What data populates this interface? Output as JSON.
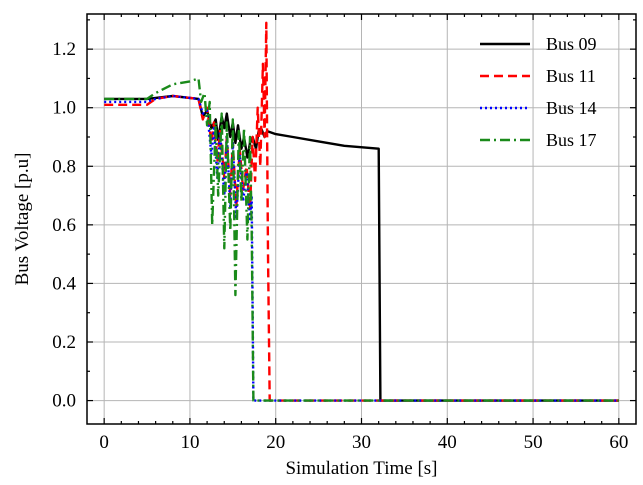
{
  "chart_data": {
    "type": "line",
    "title": "",
    "xlabel": "Simulation Time [s]",
    "ylabel": "Bus Voltage [p.u]",
    "xlim": [
      -2,
      62
    ],
    "ylim": [
      -0.08,
      1.32
    ],
    "xticks": [
      0,
      10,
      20,
      30,
      40,
      50,
      60
    ],
    "yticks": [
      0.0,
      0.2,
      0.4,
      0.6,
      0.8,
      1.0,
      1.2
    ],
    "xtick_labels": [
      "0",
      "10",
      "20",
      "30",
      "40",
      "50",
      "60"
    ],
    "ytick_labels": [
      "0.0",
      "0.2",
      "0.4",
      "0.6",
      "0.8",
      "1.0",
      "1.2"
    ],
    "grid": true,
    "legend_position": "top-right",
    "series": [
      {
        "name": "Bus 09",
        "color": "#000000",
        "style": "solid",
        "x": [
          0,
          5,
          8,
          11,
          11.5,
          12,
          12.5,
          13,
          13.3,
          13.7,
          14,
          14.3,
          14.7,
          15,
          15.3,
          15.6,
          16,
          16.3,
          16.7,
          17,
          17.3,
          17.7,
          18,
          18.3,
          18.7,
          19,
          20,
          22,
          25,
          28,
          32,
          32.2,
          40,
          50,
          60
        ],
        "y": [
          1.03,
          1.03,
          1.04,
          1.03,
          0.97,
          0.99,
          0.93,
          0.96,
          0.89,
          0.97,
          0.93,
          0.98,
          0.9,
          0.95,
          0.88,
          0.94,
          0.86,
          0.9,
          0.83,
          0.88,
          0.9,
          0.86,
          0.92,
          0.93,
          0.9,
          0.92,
          0.91,
          0.9,
          0.885,
          0.87,
          0.86,
          0.0,
          0.0,
          0.0,
          0.0
        ]
      },
      {
        "name": "Bus 11",
        "color": "#ff0000",
        "style": "dashed",
        "x": [
          0,
          5,
          6,
          8,
          11,
          11.5,
          12,
          12.5,
          12.8,
          13.2,
          13.5,
          14,
          14.3,
          14.7,
          15,
          15.4,
          15.8,
          16.2,
          16.6,
          17,
          17.3,
          17.6,
          17.9,
          18.2,
          18.5,
          18.7,
          18.9,
          19.1,
          19.3,
          25,
          40,
          60
        ],
        "y": [
          1.01,
          1.01,
          1.03,
          1.04,
          1.03,
          0.96,
          1.0,
          0.88,
          0.95,
          0.82,
          0.92,
          0.76,
          0.9,
          0.7,
          0.88,
          0.66,
          0.86,
          0.72,
          0.8,
          0.65,
          0.9,
          0.75,
          1.0,
          0.8,
          1.15,
          0.9,
          1.29,
          0.5,
          0.0,
          0.0,
          0.0,
          0.0
        ]
      },
      {
        "name": "Bus 14",
        "color": "#0000ff",
        "style": "dotted",
        "x": [
          0,
          5,
          6,
          8,
          11,
          11.5,
          12,
          12.5,
          12.8,
          13.2,
          13.5,
          14,
          14.3,
          14.7,
          15,
          15.4,
          15.8,
          16.2,
          16.6,
          17,
          17.2,
          17.4,
          20,
          40,
          60
        ],
        "y": [
          1.02,
          1.02,
          1.03,
          1.04,
          1.03,
          0.98,
          0.99,
          0.84,
          0.93,
          0.76,
          0.92,
          0.7,
          0.9,
          0.66,
          0.88,
          0.62,
          0.84,
          0.68,
          0.78,
          0.62,
          0.7,
          0.0,
          0.0,
          0.0,
          0.0
        ]
      },
      {
        "name": "Bus 17",
        "color": "#1a8a1a",
        "style": "dashdot",
        "x": [
          0,
          5,
          6,
          8,
          10,
          11,
          11.3,
          11.7,
          12,
          12.3,
          12.6,
          13,
          13.3,
          13.7,
          14,
          14.3,
          14.7,
          15,
          15.3,
          15.7,
          16,
          16.3,
          16.7,
          17,
          17.2,
          17.4,
          20,
          40,
          60
        ],
        "y": [
          1.03,
          1.03,
          1.05,
          1.08,
          1.09,
          1.1,
          1.02,
          1.05,
          0.94,
          1.02,
          0.6,
          0.95,
          0.7,
          0.98,
          0.52,
          0.95,
          0.58,
          0.96,
          0.36,
          0.92,
          0.68,
          0.93,
          0.55,
          0.9,
          0.58,
          0.0,
          0.0,
          0.0,
          0.0
        ]
      }
    ]
  }
}
